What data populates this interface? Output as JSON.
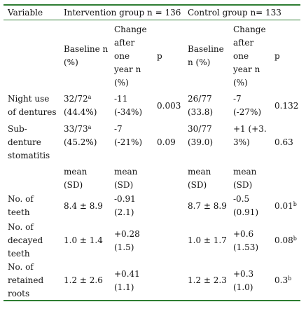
{
  "header": {
    "variable": "Variable",
    "intervention": "Intervention group n = 136",
    "control": "Control group n= 133"
  },
  "subheader": {
    "baseline_intervention": [
      "Baseline n",
      "(%)"
    ],
    "change_intervention": [
      "Change",
      "after",
      "one",
      "year n",
      "(%)"
    ],
    "p_intervention": "p",
    "baseline_control": [
      "Baseline",
      "n (%)"
    ],
    "change_control": [
      "Change",
      "after",
      "one",
      "year n",
      "(%)"
    ],
    "p_control": "p"
  },
  "rows_percent": [
    {
      "variable": [
        "Night use",
        "of dentures"
      ],
      "int_baseline": [
        "32/72",
        "(44.4%)"
      ],
      "int_baseline_sup": "a",
      "int_change": [
        "-11",
        "(-34%)"
      ],
      "int_p": "0.003",
      "ctl_baseline": [
        "26/77",
        "(33.8)"
      ],
      "ctl_change": [
        "-7",
        "(-27%)"
      ],
      "ctl_p": "0.132"
    },
    {
      "variable": [
        "Sub-",
        "denture",
        "stomatitis"
      ],
      "int_baseline": [
        "33/73",
        "(45.2%)"
      ],
      "int_baseline_sup": "a",
      "int_change": [
        "-7",
        "(-21%)"
      ],
      "int_p": "0.09",
      "ctl_baseline": [
        "30/77",
        "(39.0)"
      ],
      "ctl_change": [
        "+1 (+3.",
        "3%)"
      ],
      "ctl_p": "0.63"
    }
  ],
  "mean_header": {
    "int_baseline": [
      "mean",
      "(SD)"
    ],
    "int_change": [
      "mean",
      "(SD)"
    ],
    "ctl_baseline": [
      "mean",
      "(SD)"
    ],
    "ctl_change": [
      "mean",
      "(SD)"
    ]
  },
  "rows_mean": [
    {
      "variable": [
        "No. of",
        "teeth"
      ],
      "int_baseline": "8.4 ± 8.9",
      "int_change": [
        "-0.91",
        "(2.1)"
      ],
      "ctl_baseline": "8.7 ± 8.9",
      "ctl_change": [
        "-0.5",
        "(0.91)"
      ],
      "ctl_p": "0.01",
      "ctl_p_sup": "b"
    },
    {
      "variable": [
        "No. of",
        "decayed",
        "teeth"
      ],
      "int_baseline": "1.0 ± 1.4",
      "int_change": [
        "+0.28",
        "(1.5)"
      ],
      "ctl_baseline": "1.0 ± 1.7",
      "ctl_change": [
        "+0.6",
        "(1.53)"
      ],
      "ctl_p": "0.08",
      "ctl_p_sup": "b"
    },
    {
      "variable": [
        "No. of",
        "retained",
        "roots"
      ],
      "int_baseline": "1.2 ± 2.6",
      "int_change": [
        "+0.41",
        "(1.1)"
      ],
      "ctl_baseline": "1.2 ± 2.3",
      "ctl_change": [
        "+0.3",
        "(1.0)"
      ],
      "ctl_p": "0.3",
      "ctl_p_sup": "b"
    }
  ]
}
